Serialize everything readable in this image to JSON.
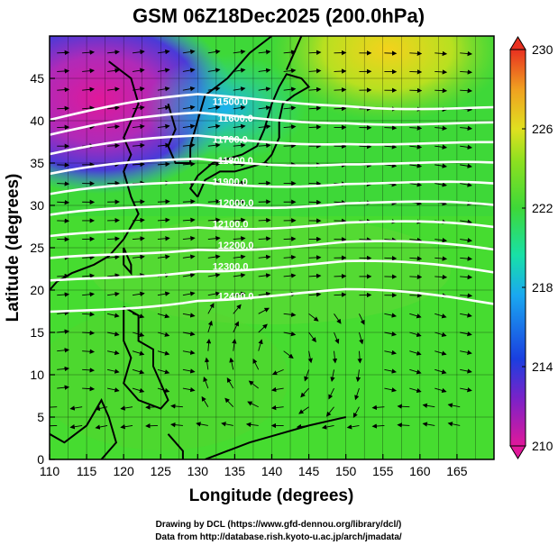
{
  "chart_data": {
    "type": "heatmap",
    "title": "GSM 06Z18Dec2025 (200.0hPa)",
    "xlabel": "Longitude (degrees)",
    "ylabel": "Latitude (degrees)",
    "xlim": [
      110,
      170
    ],
    "ylim": [
      0,
      50
    ],
    "x_ticks": [
      110,
      115,
      120,
      125,
      130,
      135,
      140,
      145,
      150,
      155,
      160,
      165
    ],
    "y_ticks": [
      0,
      5,
      10,
      15,
      20,
      25,
      30,
      35,
      40,
      45
    ],
    "colorbar": {
      "min": 210,
      "max": 230,
      "ticks": [
        210,
        214,
        218,
        222,
        226,
        230
      ],
      "colors": [
        "#e0189a",
        "#7a22c8",
        "#1a3fe0",
        "#1aa8f0",
        "#18e0a8",
        "#3ed838",
        "#8ee020",
        "#e0e020",
        "#f0a020",
        "#e83020"
      ]
    },
    "contour_labels": [
      "11500",
      "11600",
      "11700",
      "11800",
      "11900",
      "12000",
      "12100",
      "12200",
      "12300",
      "12400"
    ],
    "contour_heights_lat_at_140E": [
      {
        "value": 11500,
        "lat": 42.5
      },
      {
        "value": 11600,
        "lat": 40.5
      },
      {
        "value": 11700,
        "lat": 38.0
      },
      {
        "value": 11800,
        "lat": 35.5
      },
      {
        "value": 11900,
        "lat": 33.0
      },
      {
        "value": 12000,
        "lat": 30.5
      },
      {
        "value": 12100,
        "lat": 28.0
      },
      {
        "value": 12200,
        "lat": 25.5
      },
      {
        "value": 12300,
        "lat": 23.0
      },
      {
        "value": 12400,
        "lat": 19.5
      }
    ],
    "temperature_regions": [
      {
        "lon": 115,
        "lat": 42,
        "value": 210
      },
      {
        "lon": 125,
        "lat": 47,
        "value": 213
      },
      {
        "lon": 135,
        "lat": 44,
        "value": 216
      },
      {
        "lon": 148,
        "lat": 47,
        "value": 226
      },
      {
        "lon": 158,
        "lat": 45,
        "value": 223
      },
      {
        "lon": 140,
        "lat": 25,
        "value": 220
      },
      {
        "lon": 130,
        "lat": 10,
        "value": 221
      },
      {
        "lon": 160,
        "lat": 10,
        "value": 221
      }
    ]
  },
  "footer": {
    "line1": "Drawing by DCL (https://www.gfd-dennou.org/library/dcl/)",
    "line2": "Data from http://database.rish.kyoto-u.ac.jp/arch/jmadata/"
  }
}
